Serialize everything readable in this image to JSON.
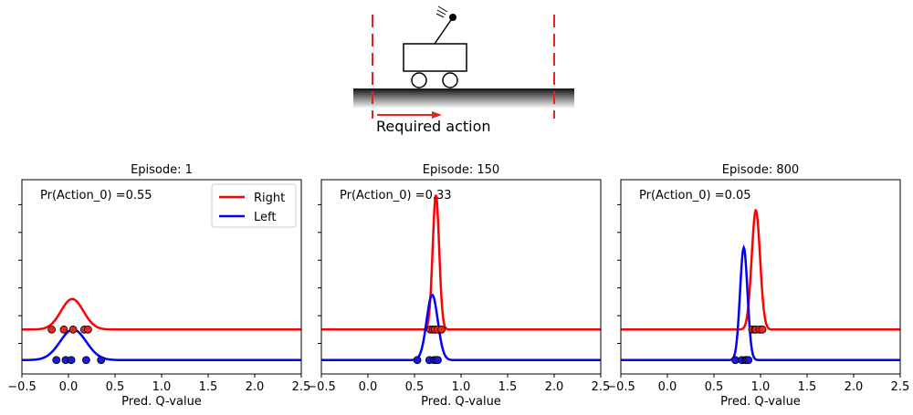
{
  "illustration": {
    "caption": "Required action",
    "colors": {
      "boundary": "#e8221f",
      "arrow": "#e8221f",
      "ground": "#111111"
    }
  },
  "chart_data": [
    {
      "type": "line",
      "title": "Episode: 1",
      "xlabel": "Pred. Q-value",
      "xlim": [
        -0.5,
        2.5
      ],
      "xticks": [
        "−0.5",
        "0.0",
        "0.5",
        "1.0",
        "1.5",
        "2.0",
        "2.5"
      ],
      "xtick_values": [
        -0.5,
        0.0,
        0.5,
        1.0,
        1.5,
        2.0,
        2.5
      ],
      "annotation": "Pr(Action_0) =0.55",
      "legend": {
        "placement": "top-right",
        "entries": [
          "Right",
          "Left"
        ]
      },
      "series": [
        {
          "name": "Right",
          "color": "#ff0000",
          "baseline": 0.0,
          "mean": 0.04,
          "sd": 0.12,
          "amp": 0.22,
          "points": [
            -0.18,
            -0.05,
            0.05,
            0.17,
            0.21
          ]
        },
        {
          "name": "Left",
          "color": "#0000ff",
          "baseline": -0.22,
          "mean": 0.05,
          "sd": 0.14,
          "amp": 0.22,
          "points": [
            -0.13,
            -0.03,
            0.03,
            0.19,
            0.35
          ]
        }
      ]
    },
    {
      "type": "line",
      "title": "Episode: 150",
      "xlabel": "Pred. Q-value",
      "xlim": [
        -0.5,
        2.5
      ],
      "xticks": [
        "−0.5",
        "0.0",
        "0.5",
        "1.0",
        "1.5",
        "2.0",
        "2.5"
      ],
      "xtick_values": [
        -0.5,
        0.0,
        0.5,
        1.0,
        1.5,
        2.0,
        2.5
      ],
      "annotation": "Pr(Action_0) =0.33",
      "series": [
        {
          "name": "Right",
          "color": "#ff0000",
          "baseline": 0.0,
          "mean": 0.73,
          "sd": 0.035,
          "amp": 0.97,
          "points": [
            0.67,
            0.7,
            0.72,
            0.75,
            0.79
          ]
        },
        {
          "name": "Left",
          "color": "#0000ff",
          "baseline": -0.22,
          "mean": 0.69,
          "sd": 0.06,
          "amp": 0.47,
          "points": [
            0.53,
            0.66,
            0.71,
            0.73,
            0.75
          ]
        }
      ]
    },
    {
      "type": "line",
      "title": "Episode: 800",
      "xlabel": "Pred. Q-value",
      "xlim": [
        -0.5,
        2.5
      ],
      "xticks": [
        "−0.5",
        "0.0",
        "0.5",
        "1.0",
        "1.5",
        "2.0",
        "2.5"
      ],
      "xtick_values": [
        -0.5,
        0.0,
        0.5,
        1.0,
        1.5,
        2.0,
        2.5
      ],
      "annotation": "Pr(Action_0) =0.05",
      "series": [
        {
          "name": "Right",
          "color": "#ff0000",
          "baseline": 0.0,
          "mean": 0.95,
          "sd": 0.045,
          "amp": 0.86,
          "points": [
            0.91,
            0.94,
            0.95,
            0.99,
            1.02
          ]
        },
        {
          "name": "Left",
          "color": "#0000ff",
          "baseline": -0.22,
          "mean": 0.82,
          "sd": 0.04,
          "amp": 0.81,
          "points": [
            0.73,
            0.8,
            0.84,
            0.85,
            0.87
          ]
        }
      ]
    }
  ]
}
